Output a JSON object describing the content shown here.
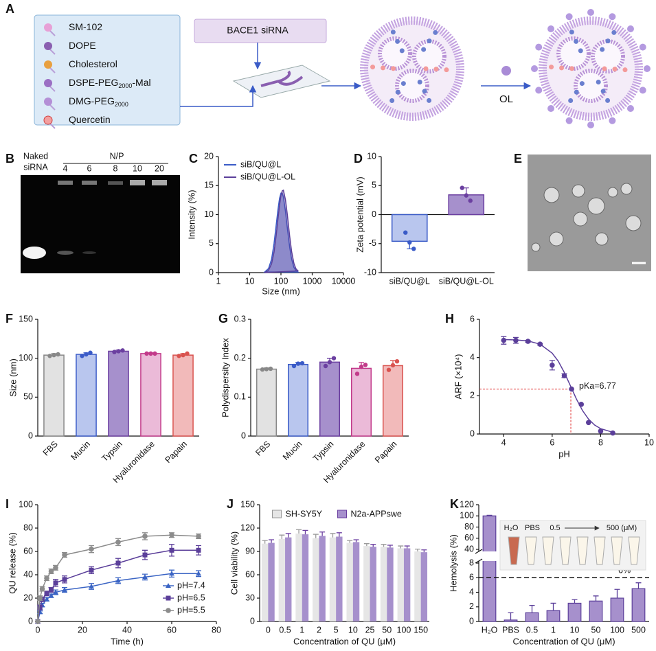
{
  "panel_a": {
    "label": "A",
    "components": [
      {
        "name": "SM-102"
      },
      {
        "name": "DOPE"
      },
      {
        "name": "Cholesterol"
      },
      {
        "name": "DSPE-PEG",
        "sub": "2000",
        "suffix": "-Mal"
      },
      {
        "name": "DMG-PEG",
        "sub": "2000"
      },
      {
        "name": "Quercetin"
      }
    ],
    "sirna": "BACE1 siRNA",
    "modifier": "OL"
  },
  "panel_b": {
    "label": "B",
    "naked": [
      "Naked",
      "siRNA"
    ],
    "np_title": "N/P",
    "np_ratios": [
      "4",
      "6",
      "8",
      "10",
      "20"
    ]
  },
  "panel_e": {
    "label": "E"
  },
  "chart_data": [
    {
      "label": "C",
      "type": "area",
      "xlabel": "Size (nm)",
      "ylabel": "Intensity (%)",
      "log_x": true,
      "legend": "upper left",
      "x": [
        30,
        40,
        50,
        60,
        70,
        80,
        90,
        100,
        110,
        120,
        140,
        160,
        190,
        220,
        260,
        300,
        350
      ],
      "series": [
        {
          "name": "siB/QU@L",
          "color": "#3a5bc7",
          "values": [
            0.1,
            0.7,
            2.3,
            5.0,
            8.1,
            10.8,
            12.8,
            13.7,
            13.7,
            13.0,
            10.5,
            7.7,
            4.4,
            2.3,
            0.9,
            0.4,
            0.1
          ]
        },
        {
          "name": "siB/QU@L-OL",
          "color": "#5b3f9a",
          "values": [
            0.0,
            0.4,
            1.5,
            3.5,
            6.3,
            9.2,
            11.6,
            13.3,
            14.1,
            14.2,
            12.5,
            10.0,
            6.3,
            3.6,
            1.6,
            0.7,
            0.3
          ]
        }
      ],
      "xlim": [
        1,
        10000
      ],
      "xticks": [
        1,
        10,
        100,
        1000,
        10000
      ],
      "ylim": [
        0,
        20
      ],
      "yticks": [
        0,
        5,
        10,
        15,
        20
      ]
    },
    {
      "label": "D",
      "type": "bar",
      "ylabel": "Zeta potential (mV)",
      "categories": [
        "siB/QU@L",
        "siB/QU@L-OL"
      ],
      "values": [
        -4.6,
        3.4
      ],
      "errors": [
        1.3,
        1.2
      ],
      "points": [
        [
          -3.1,
          -4.8,
          -5.9
        ],
        [
          4.6,
          3.3,
          2.4
        ]
      ],
      "colors": [
        "#b9c6ee",
        "#a690cc"
      ],
      "edge_colors": [
        "#3a5bc7",
        "#6b3fa0"
      ],
      "ylim": [
        -10,
        10
      ],
      "yticks": [
        -10,
        -5,
        0,
        5,
        10
      ]
    },
    {
      "label": "F",
      "type": "bar",
      "ylabel": "Size (nm)",
      "categories": [
        "FBS",
        "Mucin",
        "Typsin",
        "Hyaluronidase",
        "Papain"
      ],
      "values": [
        104,
        105,
        109,
        106,
        104
      ],
      "errors": [
        2,
        2,
        1.5,
        1,
        2
      ],
      "points": [
        [
          103,
          104,
          105
        ],
        [
          103,
          105,
          107
        ],
        [
          108,
          109,
          110
        ],
        [
          106,
          106,
          106
        ],
        [
          103,
          104,
          106
        ]
      ],
      "colors": [
        "#e2e2e2",
        "#b9c6ee",
        "#a690cc",
        "#ebbad8",
        "#f2baba"
      ],
      "edge_colors": [
        "#888888",
        "#3a5bc7",
        "#6b3fa0",
        "#c23a8a",
        "#d9534f"
      ],
      "ylim": [
        0,
        150
      ],
      "yticks": [
        0,
        50,
        100,
        150
      ]
    },
    {
      "label": "G",
      "type": "bar",
      "ylabel": "Polydispersity Index",
      "categories": [
        "FBS",
        "Mucin",
        "Typsin",
        "Hyaluronidase",
        "Papain"
      ],
      "values": [
        0.172,
        0.184,
        0.19,
        0.174,
        0.181
      ],
      "errors": [
        0.003,
        0.005,
        0.01,
        0.015,
        0.013
      ],
      "points": [
        [
          0.171,
          0.172,
          0.173
        ],
        [
          0.18,
          0.186,
          0.187
        ],
        [
          0.18,
          0.19,
          0.2
        ],
        [
          0.16,
          0.178,
          0.183
        ],
        [
          0.17,
          0.182,
          0.192
        ]
      ],
      "colors": [
        "#e2e2e2",
        "#b9c6ee",
        "#a690cc",
        "#ebbad8",
        "#f2baba"
      ],
      "edge_colors": [
        "#888888",
        "#3a5bc7",
        "#6b3fa0",
        "#c23a8a",
        "#d9534f"
      ],
      "ylim": [
        0,
        0.3
      ],
      "yticks": [
        0,
        0.1,
        0.2,
        0.3
      ]
    },
    {
      "label": "H",
      "type": "scatter",
      "xlabel": "pH",
      "ylabel": "ARF (×10⁴)",
      "annotation": "pKa=6.77",
      "reference": {
        "x": 6.77,
        "y": 2.35
      },
      "series": [
        {
          "style": "points",
          "color": "#5b3f9a",
          "x": [
            4,
            4.5,
            5,
            5.5,
            6,
            6.5,
            6.8,
            7.2,
            7.5,
            8,
            8.5
          ],
          "values": [
            4.9,
            4.9,
            4.85,
            4.7,
            3.6,
            3.05,
            2.35,
            1.55,
            0.6,
            0.15,
            0.05
          ],
          "errors": [
            0.2,
            0.15,
            0.05,
            0.05,
            0.25,
            0.1,
            0,
            0,
            0,
            0,
            0
          ]
        },
        {
          "style": "line",
          "color": "#5b3f9a",
          "x": [
            4,
            4.5,
            5,
            5.5,
            6,
            6.25,
            6.5,
            6.75,
            7,
            7.25,
            7.5,
            7.75,
            8,
            8.5
          ],
          "values": [
            4.94,
            4.92,
            4.87,
            4.7,
            4.23,
            3.81,
            3.22,
            2.53,
            1.83,
            1.23,
            0.78,
            0.47,
            0.28,
            0.09
          ]
        }
      ],
      "xlim": [
        3,
        10
      ],
      "xticks": [
        4,
        6,
        8,
        10
      ],
      "ylim": [
        0,
        6
      ],
      "yticks": [
        0,
        2,
        4,
        6
      ]
    },
    {
      "label": "I",
      "type": "line",
      "xlabel": "Time (h)",
      "ylabel": "QU release (%)",
      "legend": "lower right",
      "x": [
        0,
        1,
        2,
        4,
        6,
        8,
        12,
        24,
        36,
        48,
        60,
        72
      ],
      "series": [
        {
          "name": "pH=7.4",
          "color": "#3a64c4",
          "marker": "triangle",
          "values": [
            0,
            8,
            14,
            19,
            22,
            25,
            27,
            30,
            35,
            38,
            41,
            41
          ],
          "errors": [
            0,
            1,
            1.5,
            1.5,
            1.5,
            2,
            2,
            2.5,
            2.5,
            2.5,
            3,
            2.5
          ]
        },
        {
          "name": "pH=6.5",
          "color": "#5b3f9a",
          "marker": "square",
          "values": [
            0,
            12,
            19,
            24,
            27,
            33,
            36,
            44,
            50,
            57,
            61,
            61
          ],
          "errors": [
            0,
            2,
            2,
            2,
            2,
            3,
            3,
            3,
            4,
            4,
            5,
            4
          ]
        },
        {
          "name": "pH=5.5",
          "color": "#8c8c8c",
          "marker": "circle",
          "values": [
            0,
            20,
            28,
            37,
            43,
            46,
            57,
            62,
            68,
            73,
            74,
            73
          ],
          "errors": [
            0,
            2,
            2,
            2,
            2,
            2,
            2,
            3,
            3,
            3,
            2,
            2
          ]
        }
      ],
      "xlim": [
        0,
        80
      ],
      "xticks": [
        0,
        20,
        40,
        60,
        80
      ],
      "ylim": [
        0,
        100
      ],
      "yticks": [
        0,
        20,
        40,
        60,
        80,
        100
      ]
    },
    {
      "label": "J",
      "type": "grouped_bar",
      "xlabel": "Concentration of QU (μM)",
      "ylabel": "Cell viability (%)",
      "legend": "upper center",
      "categories": [
        "0",
        "0.5",
        "1",
        "2",
        "5",
        "10",
        "25",
        "50",
        "100",
        "150"
      ],
      "series": [
        {
          "name": "SH-SY5Y",
          "color": "#e6e6e6",
          "edge": "#999999",
          "values": [
            100,
            106,
            113,
            107,
            108,
            101,
            97,
            96,
            94,
            90
          ],
          "errors": [
            4,
            5,
            5,
            5,
            5,
            3,
            3,
            3,
            3,
            3
          ]
        },
        {
          "name": "N2a-APPswe",
          "color": "#a690cc",
          "edge": "#6b3fa0",
          "values": [
            101,
            108,
            112,
            110,
            109,
            102,
            96,
            95,
            94,
            89
          ],
          "errors": [
            4,
            5,
            5,
            5,
            5,
            3,
            3,
            3,
            3,
            3
          ]
        }
      ],
      "ylim": [
        0,
        150
      ],
      "yticks": [
        0,
        30,
        60,
        90,
        120,
        150
      ]
    },
    {
      "label": "K",
      "type": "broken_bar",
      "xlabel": "Concentration of QU (μM)",
      "ylabel": "Hemolysis (%)",
      "categories": [
        "H₂O",
        "PBS",
        "0.5",
        "1",
        "10",
        "50",
        "100",
        "500"
      ],
      "values": [
        100,
        0.2,
        1.2,
        1.5,
        2.5,
        2.8,
        3.2,
        4.5
      ],
      "errors": [
        1,
        1,
        1,
        1,
        0.5,
        0.7,
        1.2,
        0.8
      ],
      "color": "#a690cc",
      "edge_color": "#5b3f9a",
      "threshold": 6,
      "threshold_label": "6%",
      "inset_labels": [
        "H₂O",
        "PBS",
        "0.5",
        "500 (μM)"
      ],
      "ylim": [
        0,
        120
      ],
      "y_break": [
        8,
        40
      ],
      "yticks": [
        0,
        2,
        4,
        6,
        8,
        40,
        60,
        80,
        100,
        120
      ]
    }
  ]
}
